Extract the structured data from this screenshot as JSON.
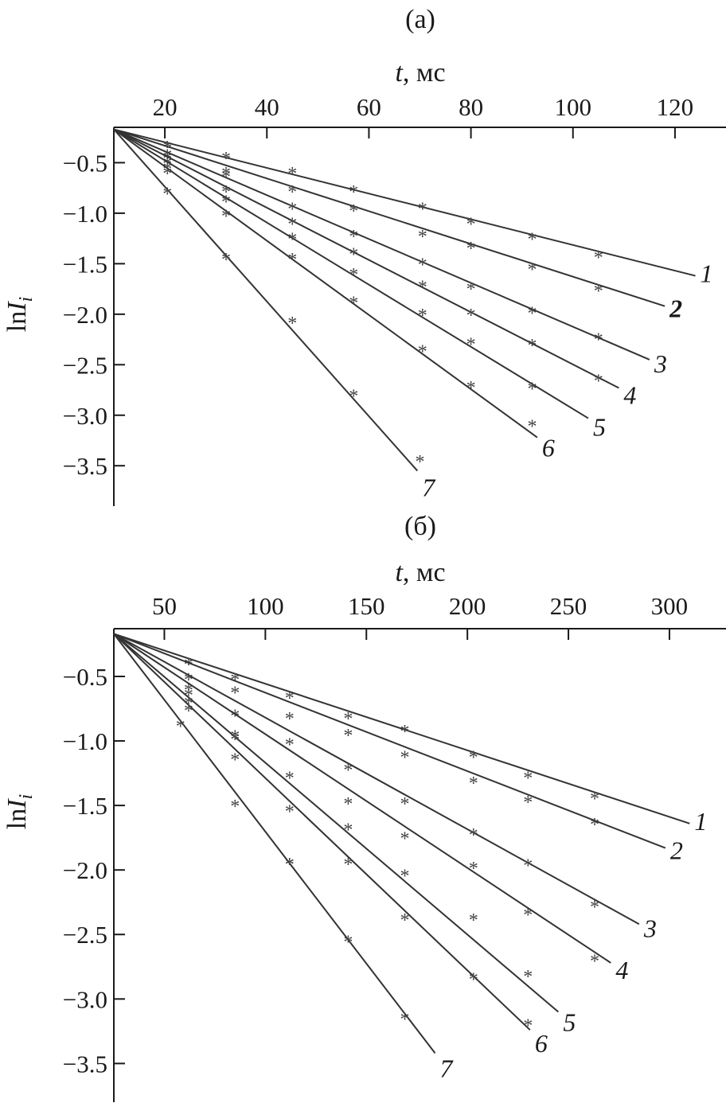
{
  "chart_data": [
    {
      "type": "scatter",
      "panel_label": "(а)",
      "title": "",
      "xlabel_var": "t",
      "xlabel_unit": ", мс",
      "ylabel_main": "ln",
      "ylabel_var": "I",
      "ylabel_sub": "i",
      "xlim": [
        10,
        130
      ],
      "ylim": [
        -3.9,
        -0.15
      ],
      "x_ticks": [
        20,
        40,
        60,
        80,
        100,
        120
      ],
      "y_ticks": [
        -0.5,
        -1.0,
        -1.5,
        -2.0,
        -2.5,
        -3.0,
        -3.5
      ],
      "y_tick_labels": [
        "−0.5",
        "−1.0",
        "−1.5",
        "−2.0",
        "−2.5",
        "−3.0",
        "−3.5"
      ],
      "x_axis_position": "top",
      "grid": false,
      "legend": "none",
      "series": [
        {
          "label": "1",
          "x": [
            20.5,
            32,
            45,
            57,
            70.5,
            80,
            92,
            105
          ],
          "y": [
            -0.34,
            -0.45,
            -0.6,
            -0.78,
            -0.95,
            -1.1,
            -1.25,
            -1.43
          ],
          "fit": [
            [
              10,
              -0.17
            ],
            [
              124,
              -1.62
            ]
          ]
        },
        {
          "label": "2",
          "x": [
            20.5,
            32,
            45,
            57,
            70.5,
            80,
            92,
            105
          ],
          "y": [
            -0.42,
            -0.6,
            -0.78,
            -0.97,
            -1.22,
            -1.34,
            -1.55,
            -1.76
          ],
          "fit": [
            [
              10,
              -0.17
            ],
            [
              118,
              -1.92
            ]
          ]
        },
        {
          "label": "3",
          "x": [
            20.5,
            32,
            45,
            57,
            70.5,
            80,
            92,
            105
          ],
          "y": [
            -0.45,
            -0.63,
            -0.95,
            -1.22,
            -1.5,
            -1.74,
            -1.98,
            -2.24
          ],
          "fit": [
            [
              10,
              -0.17
            ],
            [
              115,
              -2.45
            ]
          ]
        },
        {
          "label": "4",
          "x": [
            20.5,
            32,
            45,
            57,
            70.5,
            80,
            92,
            105
          ],
          "y": [
            -0.5,
            -0.78,
            -1.1,
            -1.4,
            -1.72,
            -2.0,
            -2.3,
            -2.65
          ],
          "fit": [
            [
              10,
              -0.17
            ],
            [
              109,
              -2.73
            ]
          ]
        },
        {
          "label": "5",
          "x": [
            20.5,
            32,
            45,
            57,
            70.5,
            80,
            92
          ],
          "y": [
            -0.55,
            -0.88,
            -1.25,
            -1.6,
            -2.0,
            -2.29,
            -2.73
          ],
          "fit": [
            [
              10,
              -0.17
            ],
            [
              103,
              -3.03
            ]
          ]
        },
        {
          "label": "6",
          "x": [
            20.5,
            32,
            45,
            57,
            70.5,
            80,
            92
          ],
          "y": [
            -0.6,
            -1.02,
            -1.45,
            -1.88,
            -2.36,
            -2.72,
            -3.1
          ],
          "fit": [
            [
              10,
              -0.17
            ],
            [
              93,
              -3.22
            ]
          ]
        },
        {
          "label": "7",
          "x": [
            20.5,
            32,
            45,
            57,
            70
          ],
          "y": [
            -0.8,
            -1.45,
            -2.08,
            -2.8,
            -3.45
          ],
          "fit": [
            [
              10,
              -0.17
            ],
            [
              69.5,
              -3.55
            ]
          ]
        }
      ]
    },
    {
      "type": "scatter",
      "panel_label": "(б)",
      "title": "",
      "xlabel_var": "t",
      "xlabel_unit": ", мс",
      "ylabel_main": "ln",
      "ylabel_var": "I",
      "ylabel_sub": "i",
      "xlim": [
        25,
        328
      ],
      "ylim": [
        -3.8,
        -0.13
      ],
      "x_ticks": [
        50,
        100,
        150,
        200,
        250,
        300
      ],
      "y_ticks": [
        -0.5,
        -1.0,
        -1.5,
        -2.0,
        -2.5,
        -3.0,
        -3.5
      ],
      "y_tick_labels": [
        "−0.5",
        "−1.0",
        "−1.5",
        "−2.0",
        "−2.5",
        "−3.0",
        "−3.5"
      ],
      "x_axis_position": "top",
      "grid": false,
      "legend": "none",
      "series": [
        {
          "label": "1",
          "x": [
            62,
            85,
            112,
            141,
            169,
            203,
            230,
            263
          ],
          "y": [
            -0.4,
            -0.52,
            -0.66,
            -0.82,
            -0.92,
            -1.12,
            -1.28,
            -1.44
          ],
          "fit": [
            [
              25,
              -0.17
            ],
            [
              310,
              -1.64
            ]
          ]
        },
        {
          "label": "2",
          "x": [
            62,
            85,
            112,
            141,
            169,
            203,
            230,
            263
          ],
          "y": [
            -0.52,
            -0.62,
            -0.82,
            -0.95,
            -1.12,
            -1.32,
            -1.47,
            -1.64
          ],
          "fit": [
            [
              25,
              -0.17
            ],
            [
              298,
              -1.83
            ]
          ]
        },
        {
          "label": "3",
          "x": [
            62,
            85,
            112,
            141,
            169,
            203,
            230,
            263
          ],
          "y": [
            -0.6,
            -0.8,
            -1.02,
            -1.22,
            -1.48,
            -1.72,
            -1.96,
            -2.28
          ],
          "fit": [
            [
              25,
              -0.17
            ],
            [
              285,
              -2.42
            ]
          ]
        },
        {
          "label": "4",
          "x": [
            62,
            85,
            112,
            141,
            169,
            203,
            230,
            263
          ],
          "y": [
            -0.64,
            -0.96,
            -1.28,
            -1.48,
            -1.75,
            -1.98,
            -2.34,
            -2.7
          ],
          "fit": [
            [
              25,
              -0.17
            ],
            [
              271,
              -2.72
            ]
          ]
        },
        {
          "label": "5",
          "x": [
            62,
            85,
            112,
            141,
            169,
            203,
            230
          ],
          "y": [
            -0.7,
            -0.98,
            -1.54,
            -1.68,
            -2.04,
            -2.38,
            -2.82
          ],
          "fit": [
            [
              25,
              -0.17
            ],
            [
              245,
              -3.1
            ]
          ]
        },
        {
          "label": "6",
          "x": [
            62,
            85,
            112,
            141,
            169,
            203,
            230
          ],
          "y": [
            -0.76,
            -1.14,
            -1.95,
            -1.95,
            -2.38,
            -2.84,
            -3.2
          ],
          "fit": [
            [
              25,
              -0.17
            ],
            [
              231,
              -3.24
            ]
          ]
        },
        {
          "label": "7",
          "x": [
            58,
            85,
            112,
            141,
            169
          ],
          "y": [
            -0.88,
            -1.5,
            -1.95,
            -2.55,
            -3.15
          ],
          "fit": [
            [
              25,
              -0.17
            ],
            [
              184,
              -3.42
            ]
          ]
        }
      ]
    }
  ]
}
